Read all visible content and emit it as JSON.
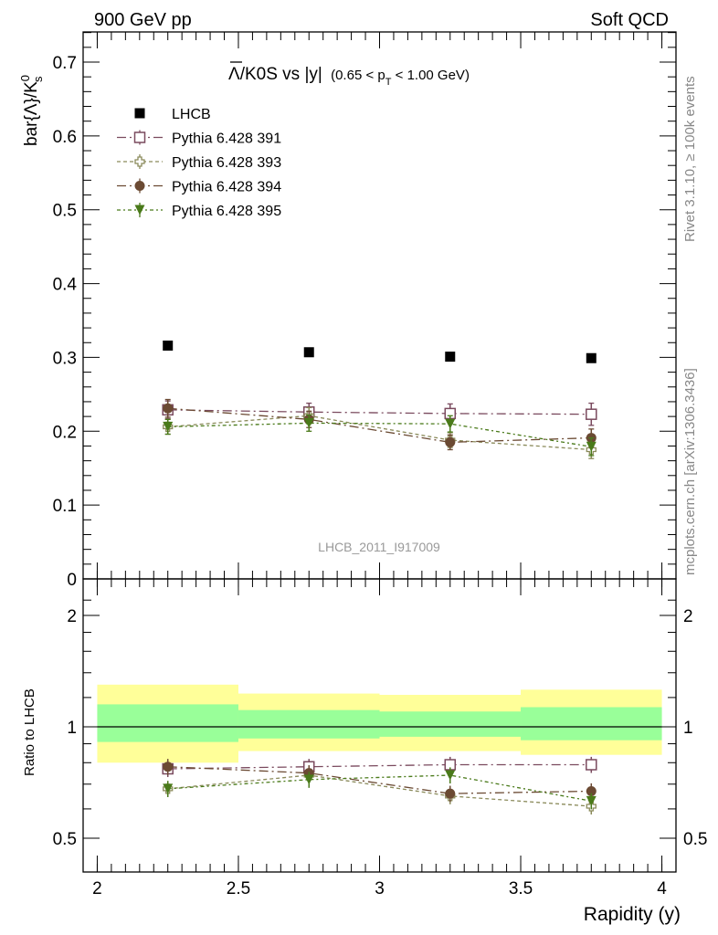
{
  "header": {
    "left": "900 GeV pp",
    "right": "Soft QCD"
  },
  "side_text": {
    "rivet": "Rivet 3.1.10, ≥ 100k events",
    "mcplots": "mcplots.cern.ch [arXiv:1306.3436]"
  },
  "colors": {
    "data": "#000000",
    "p391": "#7a4a5e",
    "p393": "#8a8a5a",
    "p394": "#6b4a33",
    "p395": "#4a7a1a",
    "band_inner": "#99ff99",
    "band_outer": "#ffff99"
  },
  "chart_data": [
    {
      "type": "scatter",
      "title_main": "Λ/K0S vs |y|",
      "title_sub_pre": "(0.65 < p",
      "title_sub_index": "T",
      "title_sub_post": " < 1.00 GeV)",
      "ylabel_pre": "bar{Λ}/K",
      "ylabel_sup": "0",
      "ylabel_sub": "s",
      "watermark": "LHCB_2011_I917009",
      "ylim": [
        0,
        0.74
      ],
      "yticks": [
        "0",
        "0.1",
        "0.2",
        "0.3",
        "0.4",
        "0.5",
        "0.6",
        "0.7"
      ],
      "x": [
        2.25,
        2.75,
        3.25,
        3.75
      ],
      "series": [
        {
          "name": "LHCB",
          "marker": "square-filled",
          "values": [
            0.316,
            0.307,
            0.301,
            0.299
          ],
          "errors": [
            0.003,
            0.003,
            0.003,
            0.003
          ]
        },
        {
          "name": "Pythia 6.428 391",
          "marker": "square-open",
          "values": [
            0.229,
            0.226,
            0.224,
            0.223
          ],
          "errors": [
            0.012,
            0.012,
            0.013,
            0.015
          ]
        },
        {
          "name": "Pythia 6.428 393",
          "marker": "cross-open",
          "values": [
            0.206,
            0.221,
            0.188,
            0.175
          ],
          "errors": [
            0.01,
            0.011,
            0.01,
            0.012
          ]
        },
        {
          "name": "Pythia 6.428 394",
          "marker": "circle-filled",
          "values": [
            0.231,
            0.216,
            0.185,
            0.191
          ],
          "errors": [
            0.012,
            0.011,
            0.01,
            0.012
          ]
        },
        {
          "name": "Pythia 6.428 395",
          "marker": "triangle-down-filled",
          "values": [
            0.206,
            0.211,
            0.21,
            0.179
          ],
          "errors": [
            0.01,
            0.011,
            0.011,
            0.012
          ]
        }
      ]
    },
    {
      "type": "scatter",
      "ylabel": "Ratio to LHCB",
      "xlabel": "Rapidity (y)",
      "xlim": [
        1.95,
        4.05
      ],
      "ylim": [
        0.35,
        2.3
      ],
      "yscale": "log",
      "xticks": [
        "2",
        "2.5",
        "3",
        "3.5",
        "4"
      ],
      "yticks": [
        "0.5",
        "1",
        "2"
      ],
      "bins": [
        [
          2.0,
          2.5
        ],
        [
          2.5,
          3.0
        ],
        [
          3.0,
          3.5
        ],
        [
          3.5,
          4.0
        ]
      ],
      "band_inner": [
        [
          0.91,
          1.15
        ],
        [
          0.93,
          1.11
        ],
        [
          0.94,
          1.1
        ],
        [
          0.92,
          1.13
        ]
      ],
      "band_outer": [
        [
          0.8,
          1.3
        ],
        [
          0.86,
          1.23
        ],
        [
          0.86,
          1.22
        ],
        [
          0.84,
          1.26
        ]
      ],
      "series": [
        {
          "name": "Pythia 6.428 391",
          "values": [
            0.77,
            0.78,
            0.79,
            0.79
          ]
        },
        {
          "name": "Pythia 6.428 393",
          "values": [
            0.68,
            0.74,
            0.65,
            0.61
          ]
        },
        {
          "name": "Pythia 6.428 394",
          "values": [
            0.78,
            0.75,
            0.66,
            0.67
          ]
        },
        {
          "name": "Pythia 6.428 395",
          "values": [
            0.68,
            0.72,
            0.74,
            0.63
          ]
        }
      ]
    }
  ]
}
